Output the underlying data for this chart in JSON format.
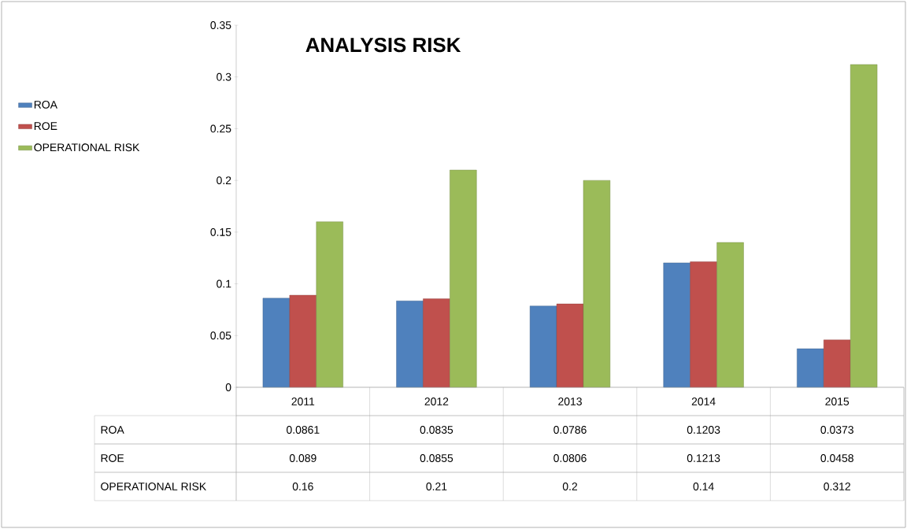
{
  "chart_data": {
    "type": "bar",
    "title": "ANALYSIS RISK",
    "categories": [
      "2011",
      "2012",
      "2013",
      "2014",
      "2015"
    ],
    "series": [
      {
        "name": "ROA",
        "color": "#4f81bd",
        "values": [
          0.0861,
          0.0835,
          0.0786,
          0.1203,
          0.0373
        ]
      },
      {
        "name": "ROE",
        "color": "#c0504d",
        "values": [
          0.089,
          0.0855,
          0.0806,
          0.1213,
          0.0458
        ]
      },
      {
        "name": "OPERATIONAL RISK",
        "color": "#9bbb59",
        "values": [
          0.16,
          0.21,
          0.2,
          0.14,
          0.312
        ]
      }
    ],
    "ylim": [
      0,
      0.35
    ],
    "yticks": [
      0,
      0.05,
      0.1,
      0.15,
      0.2,
      0.25,
      0.3,
      0.35
    ],
    "grid": false,
    "legend": "left",
    "data_labels": true
  }
}
